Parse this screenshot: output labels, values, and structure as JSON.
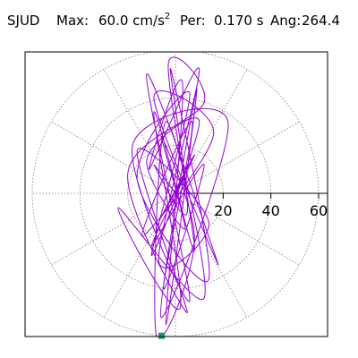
{
  "header": {
    "station": "SJUD",
    "max_label": "Max:",
    "max_value": "60.0 cm/s",
    "max_exponent": "2",
    "period_label": "Per:",
    "period_value": "0.170 s",
    "angle_label": "Ang:",
    "angle_value": "264.4"
  },
  "chart_data": {
    "type": "scatter",
    "title": "",
    "coordinate_system": "polar",
    "radial_range": [
      0,
      60
    ],
    "radial_ticks": [
      "20",
      "40",
      "60"
    ],
    "radial_tick_values": [
      20,
      40,
      60
    ],
    "radial_gridlines": [
      20,
      40,
      60
    ],
    "angular_gridlines_deg": [
      0,
      30,
      60,
      90,
      120,
      150,
      180,
      210,
      240,
      270,
      300,
      330
    ],
    "grid": "dotted",
    "trace": {
      "color": "#9400d3",
      "peak": {
        "amplitude": 60.0,
        "angle_deg": 264.4,
        "x": -5.8,
        "y": -59.7
      },
      "x": [
        0,
        4,
        -6,
        8,
        -10,
        12,
        -5,
        7,
        -14,
        16,
        -9,
        18,
        -12,
        6,
        -18,
        22,
        -6,
        9,
        -4,
        3,
        -11,
        10,
        -7,
        14,
        -16,
        5,
        -20,
        12,
        -3,
        8,
        -9,
        2,
        -24,
        12,
        -4,
        -8,
        8,
        -6,
        4,
        -12,
        10,
        -10,
        6,
        -16,
        14,
        -2,
        5,
        -9,
        3,
        0
      ],
      "y": [
        0,
        8,
        -10,
        16,
        -22,
        12,
        -40,
        30,
        -18,
        25,
        40,
        -30,
        50,
        -45,
        20,
        30,
        -52,
        44,
        -55,
        46,
        10,
        52,
        -28,
        -12,
        18,
        -50,
        8,
        38,
        54,
        -24,
        34,
        -48,
        -6,
        -44,
        30,
        -59.7,
        -20,
        24,
        -15,
        14,
        30,
        -26,
        42,
        6,
        -36,
        52,
        -8,
        12,
        -4,
        0
      ]
    },
    "peak_marker": {
      "color": "#1e9a73"
    },
    "frame": {
      "color": "#000000"
    },
    "axis_color": "#000000",
    "grid_color": "#808080"
  }
}
